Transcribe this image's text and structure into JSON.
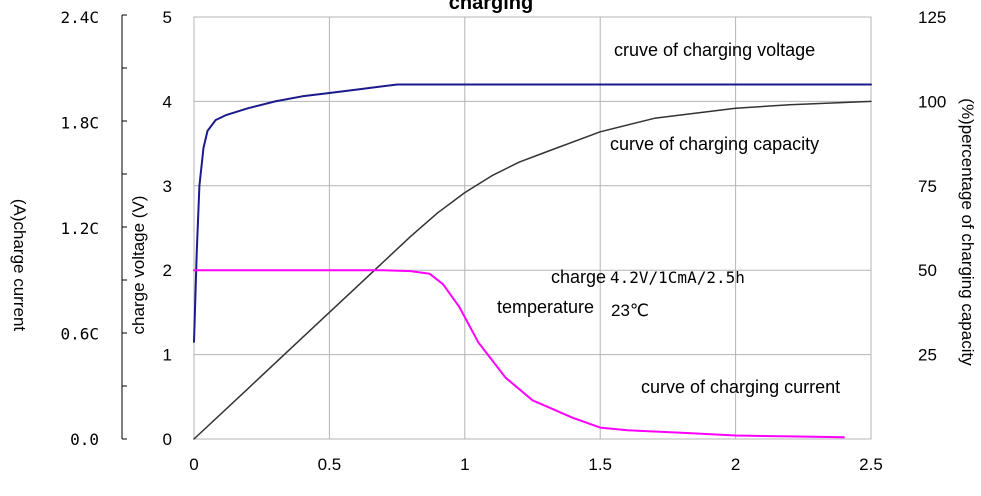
{
  "chart_data": {
    "type": "line",
    "title": "charging",
    "x": {
      "range": [
        0,
        2.5
      ],
      "ticks": [
        0,
        0.5,
        1,
        1.5,
        2,
        2.5
      ],
      "tick_labels": [
        "0",
        "0.5",
        "1",
        "1.5",
        "2",
        "2.5"
      ]
    },
    "y_voltage": {
      "label": "charge voltage (V)",
      "range": [
        0,
        5
      ],
      "ticks": [
        0,
        1,
        2,
        3,
        4,
        5
      ],
      "tick_labels": [
        "0",
        "1",
        "2",
        "3",
        "4",
        "5"
      ]
    },
    "y_current": {
      "label": "(A)charge current",
      "range": [
        0,
        2.4
      ],
      "ticks": [
        0,
        0.6,
        1.2,
        1.8,
        2.4
      ],
      "tick_labels": [
        "0.0",
        "0.6C",
        "1.2C",
        "1.8C",
        "2.4C"
      ]
    },
    "y_capacity": {
      "label": "(%)percentage of charging capacity",
      "range": [
        0,
        125
      ],
      "ticks": [
        25,
        50,
        75,
        100,
        125
      ],
      "tick_labels": [
        "25",
        "50",
        "75",
        "100",
        "125"
      ]
    },
    "grid": true,
    "series": [
      {
        "name": "cruve of charging voltage",
        "axis": "voltage",
        "color": "#1a1a8c",
        "points": [
          [
            0,
            1.15
          ],
          [
            0.01,
            2.2
          ],
          [
            0.02,
            3.0
          ],
          [
            0.035,
            3.45
          ],
          [
            0.05,
            3.65
          ],
          [
            0.08,
            3.78
          ],
          [
            0.12,
            3.84
          ],
          [
            0.2,
            3.92
          ],
          [
            0.3,
            4.0
          ],
          [
            0.4,
            4.06
          ],
          [
            0.5,
            4.1
          ],
          [
            0.6,
            4.14
          ],
          [
            0.75,
            4.2
          ],
          [
            1.0,
            4.2
          ],
          [
            1.5,
            4.2
          ],
          [
            2.0,
            4.2
          ],
          [
            2.5,
            4.2
          ]
        ]
      },
      {
        "name": "curve of charging capacity",
        "axis": "capacity",
        "color": "#333333",
        "points": [
          [
            0,
            0
          ],
          [
            0.2,
            15
          ],
          [
            0.4,
            30
          ],
          [
            0.6,
            45
          ],
          [
            0.8,
            60
          ],
          [
            0.9,
            67
          ],
          [
            1.0,
            73
          ],
          [
            1.1,
            78
          ],
          [
            1.2,
            82
          ],
          [
            1.3,
            85
          ],
          [
            1.5,
            91
          ],
          [
            1.7,
            95
          ],
          [
            2.0,
            98
          ],
          [
            2.2,
            99
          ],
          [
            2.5,
            100
          ]
        ]
      },
      {
        "name": "curve of charging current",
        "axis": "current",
        "color": "#ff00ff",
        "points": [
          [
            0,
            0.96
          ],
          [
            0.2,
            0.96
          ],
          [
            0.5,
            0.96
          ],
          [
            0.7,
            0.96
          ],
          [
            0.8,
            0.955
          ],
          [
            0.87,
            0.94
          ],
          [
            0.92,
            0.88
          ],
          [
            0.98,
            0.75
          ],
          [
            1.05,
            0.55
          ],
          [
            1.15,
            0.35
          ],
          [
            1.25,
            0.22
          ],
          [
            1.4,
            0.12
          ],
          [
            1.5,
            0.065
          ],
          [
            1.6,
            0.05
          ],
          [
            1.8,
            0.035
          ],
          [
            2.0,
            0.02
          ],
          [
            2.2,
            0.015
          ],
          [
            2.4,
            0.01
          ]
        ]
      }
    ],
    "annotations": {
      "voltage_curve": "cruve of charging voltage",
      "capacity_curve": "curve of charging capacity",
      "charge_label": "charge",
      "charge_spec": "4.2V/1CmA/2.5h",
      "temperature_label": "temperature",
      "temperature_value": "23℃",
      "current_curve": "curve of charging current"
    }
  }
}
